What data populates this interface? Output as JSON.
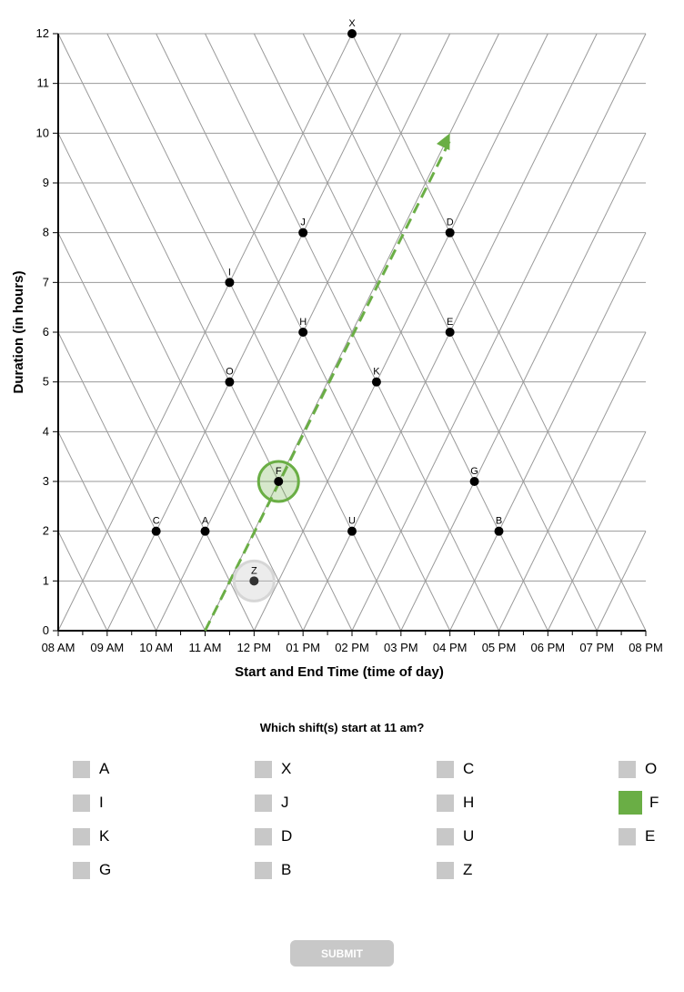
{
  "chart_data": {
    "type": "scatter",
    "xlabel": "Start and End Time (time of day)",
    "ylabel": "Duration (in hours)",
    "x_ticks": [
      "08 AM",
      "09 AM",
      "10 AM",
      "11 AM",
      "12 PM",
      "01 PM",
      "02 PM",
      "03 PM",
      "04 PM",
      "05 PM",
      "06 PM",
      "07 PM",
      "08 PM"
    ],
    "y_ticks": [
      "0",
      "1",
      "2",
      "3",
      "4",
      "5",
      "6",
      "7",
      "8",
      "9",
      "10",
      "11",
      "12"
    ],
    "xlim": [
      8,
      20
    ],
    "ylim": [
      0,
      12
    ],
    "grid": "triangular",
    "points": [
      {
        "name": "X",
        "x": 14,
        "y": 12
      },
      {
        "name": "J",
        "x": 13,
        "y": 8
      },
      {
        "name": "D",
        "x": 16,
        "y": 8
      },
      {
        "name": "I",
        "x": 11.5,
        "y": 7
      },
      {
        "name": "H",
        "x": 13,
        "y": 6
      },
      {
        "name": "E",
        "x": 16,
        "y": 6
      },
      {
        "name": "O",
        "x": 11.5,
        "y": 5
      },
      {
        "name": "K",
        "x": 14.5,
        "y": 5
      },
      {
        "name": "F",
        "x": 12.5,
        "y": 3
      },
      {
        "name": "G",
        "x": 16.5,
        "y": 3
      },
      {
        "name": "C",
        "x": 10,
        "y": 2
      },
      {
        "name": "A",
        "x": 11,
        "y": 2
      },
      {
        "name": "U",
        "x": 14,
        "y": 2
      },
      {
        "name": "B",
        "x": 17,
        "y": 2
      },
      {
        "name": "Z",
        "x": 12,
        "y": 1
      }
    ],
    "selected_point": "F",
    "hovered_point": "Z",
    "guide_line": {
      "from": [
        11,
        0
      ],
      "to": [
        16,
        10
      ]
    },
    "accent_color": "#6aae45"
  },
  "question": "Which shift(s) start at 11 am?",
  "options": [
    {
      "label": "A",
      "checked": false
    },
    {
      "label": "X",
      "checked": false
    },
    {
      "label": "C",
      "checked": false
    },
    {
      "label": "O",
      "checked": false
    },
    {
      "label": "I",
      "checked": false
    },
    {
      "label": "J",
      "checked": false
    },
    {
      "label": "H",
      "checked": false
    },
    {
      "label": "F",
      "checked": true
    },
    {
      "label": "K",
      "checked": false
    },
    {
      "label": "D",
      "checked": false
    },
    {
      "label": "U",
      "checked": false
    },
    {
      "label": "E",
      "checked": false
    },
    {
      "label": "G",
      "checked": false
    },
    {
      "label": "B",
      "checked": false
    },
    {
      "label": "Z",
      "checked": false
    }
  ],
  "submit_label": "SUBMIT"
}
